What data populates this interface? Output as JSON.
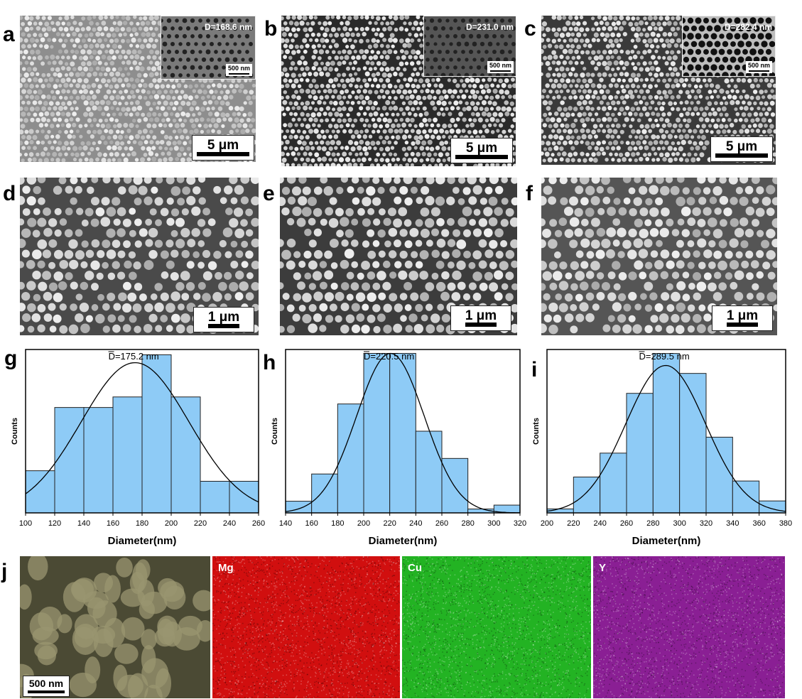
{
  "panel_labels": [
    "a",
    "b",
    "c",
    "d",
    "e",
    "f",
    "g",
    "h",
    "i",
    "j"
  ],
  "top_row": [
    {
      "scale": "5 μm",
      "inset_d": "D=168.6 nm",
      "inset_scale": "500 nm",
      "tone": "#8e8e8e"
    },
    {
      "scale": "5 μm",
      "inset_d": "D=231.0 nm",
      "inset_scale": "500 nm",
      "tone": "#2a2a2a"
    },
    {
      "scale": "5 μm",
      "inset_d": "D=282.4 nm",
      "inset_scale": "500 nm",
      "tone": "#3a3a3a"
    }
  ],
  "mid_row": [
    {
      "scale": "1 μm",
      "tone": "#4a4a4a"
    },
    {
      "scale": "1 μm",
      "tone": "#3c3c3c"
    },
    {
      "scale": "1 μm",
      "tone": "#555555"
    }
  ],
  "chart_data": [
    {
      "type": "bar",
      "title": "D=175.2 nm",
      "xlabel": "Diameter(nm)",
      "ylabel": "Counts",
      "xlim": [
        100,
        260
      ],
      "bin_edges": [
        100,
        120,
        140,
        160,
        180,
        200,
        220,
        240,
        260
      ],
      "values": [
        8,
        20,
        20,
        22,
        30,
        22,
        6,
        6
      ],
      "fit_mean": 175.2,
      "fit_sd": 37,
      "fit_peak": 28.5,
      "ymax": 31,
      "x_ticks": [
        100,
        120,
        140,
        160,
        180,
        200,
        220,
        240,
        260
      ]
    },
    {
      "type": "bar",
      "title": "D=220.5 nm",
      "xlabel": "Diameter(nm)",
      "ylabel": "Counts",
      "xlim": [
        140,
        320
      ],
      "bin_edges": [
        140,
        160,
        180,
        200,
        220,
        240,
        260,
        280,
        300,
        320
      ],
      "values": [
        3,
        10,
        28,
        41,
        41,
        21,
        14,
        1,
        2
      ],
      "fit_mean": 220.5,
      "fit_sd": 26,
      "fit_peak": 41,
      "ymax": 42,
      "x_ticks": [
        140,
        160,
        180,
        200,
        220,
        240,
        260,
        280,
        300,
        320
      ]
    },
    {
      "type": "bar",
      "title": "D=289.5 nm",
      "xlabel": "Diameter(nm)",
      "ylabel": "Counts",
      "xlim": [
        200,
        380
      ],
      "bin_edges": [
        200,
        220,
        240,
        260,
        280,
        300,
        320,
        340,
        360,
        380
      ],
      "values": [
        1,
        9,
        15,
        30,
        40,
        35,
        19,
        8,
        3
      ],
      "fit_mean": 289.5,
      "fit_sd": 30,
      "fit_peak": 37,
      "ymax": 41,
      "x_ticks": [
        200,
        220,
        240,
        260,
        280,
        300,
        320,
        340,
        360,
        380
      ]
    }
  ],
  "eds": {
    "scale": "500 nm",
    "maps": [
      {
        "element": "",
        "color": "#6f6a4a"
      },
      {
        "element": "Mg",
        "color": "#d10f0f"
      },
      {
        "element": "Cu",
        "color": "#23b323"
      },
      {
        "element": "Y",
        "color": "#8a1f94"
      }
    ]
  }
}
